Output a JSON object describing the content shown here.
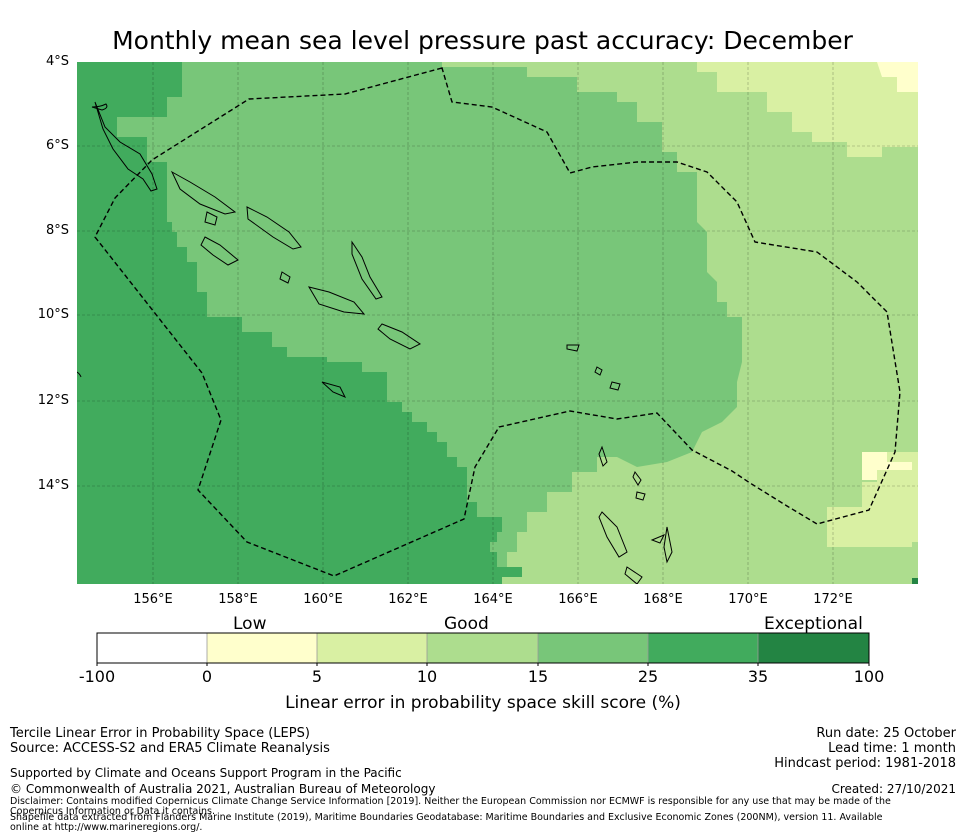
{
  "title": "Monthly mean sea level pressure past accuracy: December",
  "map": {
    "lat_labels": [
      "4°S",
      "6°S",
      "8°S",
      "10°S",
      "12°S",
      "14°S"
    ],
    "lon_labels": [
      "156°E",
      "158°E",
      "160°E",
      "162°E",
      "164°E",
      "166°E",
      "168°E",
      "170°E",
      "172°E"
    ],
    "colors": {
      "c_0_5": "#ffffcc",
      "c_5_10": "#d9f0a3",
      "c_10_15": "#addd8e",
      "c_15_25": "#78c679",
      "c_25_35": "#41ab5d",
      "c_35_100": "#238443"
    }
  },
  "colorbar": {
    "categories": [
      "Low",
      "Good",
      "Exceptional"
    ],
    "ticks": [
      "-100",
      "0",
      "5",
      "10",
      "15",
      "25",
      "35",
      "100"
    ],
    "bins": [
      {
        "range": "-100 to 0",
        "color": "#ffffff"
      },
      {
        "range": "0 to 5",
        "color": "#ffffcc"
      },
      {
        "range": "5 to 10",
        "color": "#d9f0a3"
      },
      {
        "range": "10 to 15",
        "color": "#addd8e"
      },
      {
        "range": "15 to 25",
        "color": "#78c679"
      },
      {
        "range": "25 to 35",
        "color": "#41ab5d"
      },
      {
        "range": "35 to 100",
        "color": "#238443"
      }
    ],
    "title": "Linear error in probability space skill score (%)"
  },
  "footer": {
    "method": "Tercile Linear Error in Probability Space (LEPS)",
    "source": "Source: ACCESS-S2 and ERA5 Climate Reanalysis",
    "support": "Supported by Climate and Oceans Support Program in the Pacific",
    "copyright": "© Commonwealth of Australia 2021, Australian Bureau of Meteorology",
    "disclaimer": "Disclaimer: Contains modified Copernicus Climate Change Service Information [2019]. Neither the European Commission nor ECMWF is responsible for any use that may be made of the Copernicus Information or Data it contains.",
    "shapefile": "Shapefile data extracted from Flanders Marine Institute (2019), Maritime Boundaries Geodatabase: Maritime Boundaries and Exclusive Economic Zones (200NM), version 11. Available online at http://www.marineregions.org/.",
    "run_date": "Run date: 25 October",
    "lead_time": "Lead time: 1 month",
    "hindcast": "Hindcast period: 1981-2018",
    "created": "Created: 27/10/2021"
  }
}
